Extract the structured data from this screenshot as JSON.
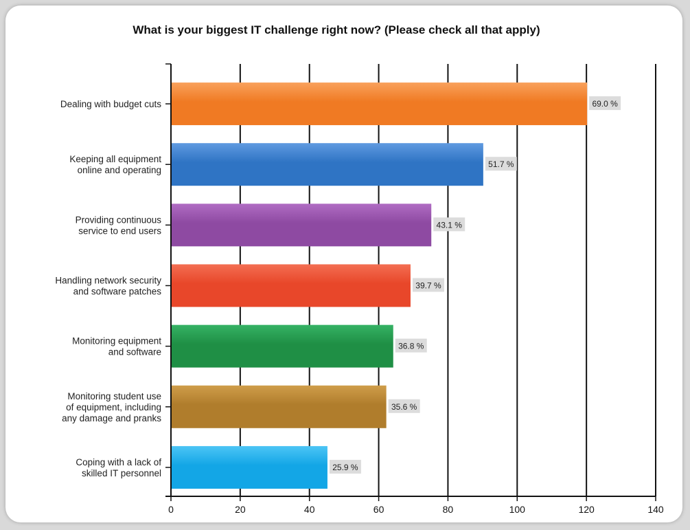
{
  "chart_data": {
    "type": "bar",
    "orientation": "horizontal",
    "title": "What is your biggest IT challenge right now? (Please check all that apply)",
    "xlabel": "",
    "ylabel": "",
    "xlim": [
      0,
      140
    ],
    "x_ticks": [
      0,
      20,
      40,
      60,
      80,
      100,
      120,
      140
    ],
    "grid": true,
    "legend": "none",
    "categories": [
      [
        "Dealing with budget cuts"
      ],
      [
        "Keeping all equipment",
        "online and operating"
      ],
      [
        "Providing continuous",
        "service to end users"
      ],
      [
        "Handling network security",
        "and software patches"
      ],
      [
        "Monitoring equipment",
        "and software"
      ],
      [
        "Monitoring student use",
        "of equipment, including",
        "any damage and pranks"
      ],
      [
        "Coping with a lack of",
        "skilled IT personnel"
      ]
    ],
    "values": [
      120,
      90,
      75,
      69,
      64,
      62,
      45
    ],
    "data_labels": [
      "69.0 %",
      "51.7 %",
      "43.1 %",
      "39.7 %",
      "36.8 %",
      "35.6 %",
      "25.9 %"
    ],
    "colors": [
      "#f07a23",
      "#2f74c4",
      "#8e4aa2",
      "#e8472a",
      "#1f8f45",
      "#b07d2c",
      "#13a6e6"
    ],
    "colors_light": [
      "#f9a15c",
      "#5f9ae0",
      "#b06cc3",
      "#f36e52",
      "#35b264",
      "#cf9d4a",
      "#4cc5f5"
    ]
  }
}
